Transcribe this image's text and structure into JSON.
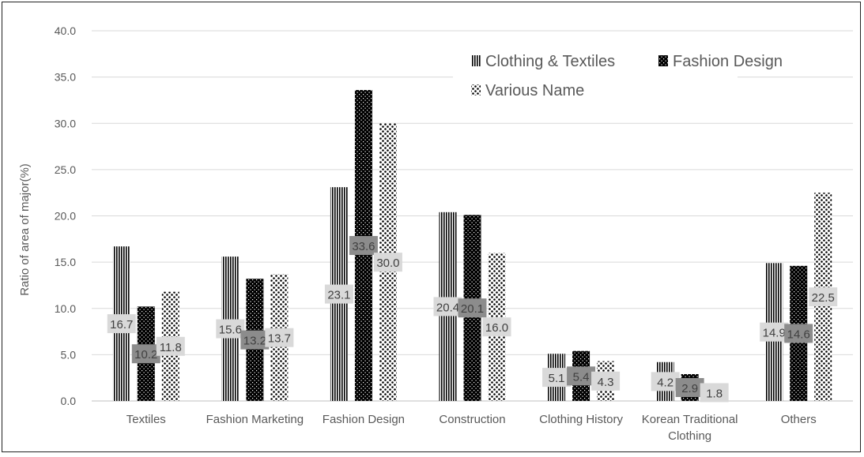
{
  "chart_data": {
    "type": "bar",
    "title": "",
    "xlabel": "",
    "ylabel": "Ratio of area of major(%)",
    "ylim": [
      0,
      40
    ],
    "yticks": [
      "0.0",
      "5.0",
      "10.0",
      "15.0",
      "20.0",
      "25.0",
      "30.0",
      "35.0",
      "40.0"
    ],
    "grid": true,
    "legend_position": "top-right",
    "categories": [
      "Textiles",
      "Fashion Marketing",
      "Fashion Design",
      "Construction",
      "Clothing History",
      "Korean Traditional Clothing",
      "Others"
    ],
    "category_lines": [
      [
        "Textiles"
      ],
      [
        "Fashion Marketing"
      ],
      [
        "Fashion Design"
      ],
      [
        "Construction"
      ],
      [
        "Clothing History"
      ],
      [
        "Korean Traditional",
        "Clothing"
      ],
      [
        "Others"
      ]
    ],
    "series": [
      {
        "name": "Clothing & Textiles",
        "pattern": "vertical-stripes",
        "values": [
          16.7,
          15.6,
          23.1,
          20.4,
          5.1,
          4.2,
          14.9
        ]
      },
      {
        "name": "Fashion Design",
        "pattern": "dense-dots",
        "values": [
          10.2,
          13.2,
          33.6,
          20.1,
          5.4,
          2.9,
          14.6
        ]
      },
      {
        "name": "Various Name",
        "pattern": "sparse-dots",
        "values": [
          11.8,
          13.7,
          30.0,
          16.0,
          4.3,
          1.8,
          22.5
        ]
      }
    ],
    "colors": {
      "bar": "#000000",
      "grid": "#d9d9d9",
      "label_box": "#d9d9d9",
      "label_box_dark": "#8c8c8c",
      "text": "#595959"
    }
  }
}
